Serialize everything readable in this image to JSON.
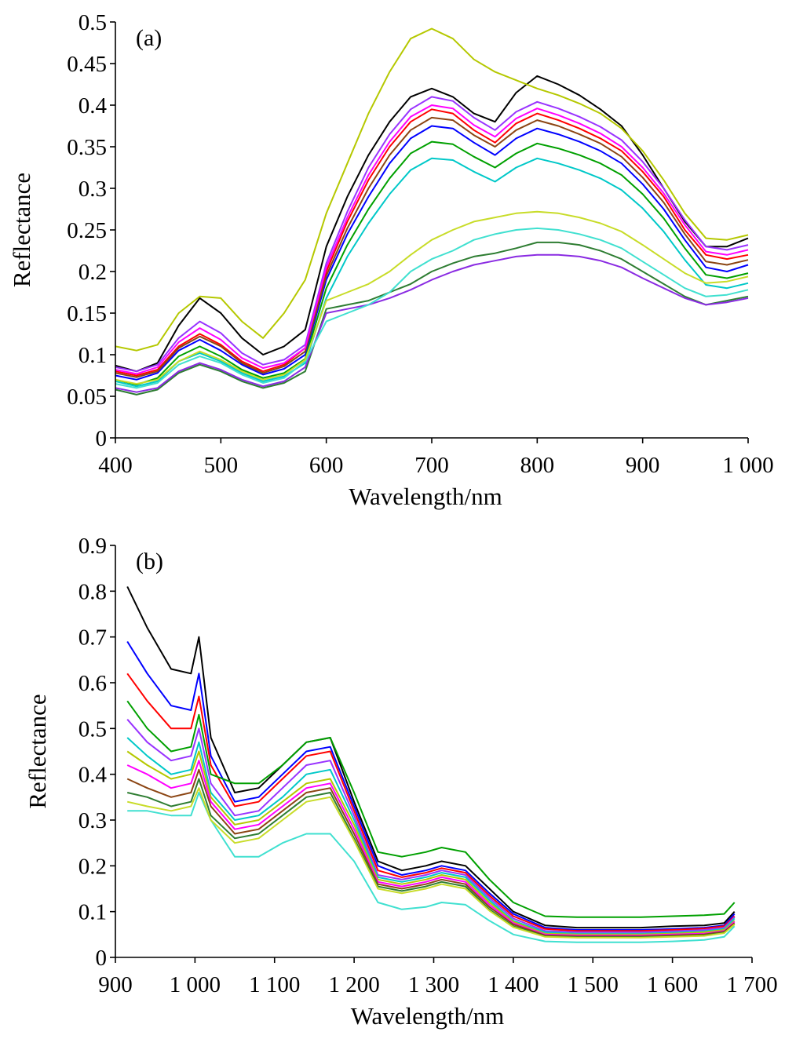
{
  "chart_data": [
    {
      "type": "line",
      "panel_label": "(a)",
      "xlabel": "Wavelength/nm",
      "ylabel": "Reflectance",
      "xlim": [
        400,
        1000
      ],
      "ylim": [
        0,
        0.5
      ],
      "x_ticks": [
        400,
        500,
        600,
        700,
        800,
        900,
        1000
      ],
      "x_tick_labels": [
        "400",
        "500",
        "600",
        "700",
        "800",
        "900",
        "1 000"
      ],
      "y_ticks": [
        0,
        0.05,
        0.1,
        0.15,
        0.2,
        0.25,
        0.3,
        0.35,
        0.4,
        0.45,
        0.5
      ],
      "y_tick_labels": [
        "0",
        "0.05",
        "0.1",
        "0.15",
        "0.2",
        "0.25",
        "0.3",
        "0.35",
        "0.4",
        "0.45",
        "0.5"
      ],
      "grid": false,
      "legend": "none",
      "x": [
        400,
        420,
        440,
        460,
        480,
        500,
        520,
        540,
        560,
        580,
        600,
        620,
        640,
        660,
        680,
        700,
        720,
        740,
        760,
        780,
        800,
        820,
        840,
        860,
        880,
        900,
        920,
        940,
        960,
        980,
        1000
      ],
      "series": [
        {
          "color": "#000000",
          "values": [
            0.087,
            0.08,
            0.09,
            0.135,
            0.168,
            0.15,
            0.12,
            0.1,
            0.11,
            0.13,
            0.23,
            0.29,
            0.34,
            0.38,
            0.41,
            0.42,
            0.41,
            0.39,
            0.38,
            0.415,
            0.435,
            0.425,
            0.412,
            0.395,
            0.375,
            0.34,
            0.3,
            0.26,
            0.23,
            0.23,
            0.24
          ]
        },
        {
          "color": "#ff0000",
          "values": [
            0.08,
            0.075,
            0.082,
            0.11,
            0.125,
            0.112,
            0.092,
            0.08,
            0.088,
            0.108,
            0.2,
            0.26,
            0.31,
            0.35,
            0.38,
            0.395,
            0.39,
            0.37,
            0.355,
            0.378,
            0.39,
            0.382,
            0.372,
            0.36,
            0.345,
            0.32,
            0.29,
            0.25,
            0.22,
            0.215,
            0.22
          ]
        },
        {
          "color": "#0000ff",
          "values": [
            0.075,
            0.07,
            0.078,
            0.105,
            0.118,
            0.105,
            0.088,
            0.076,
            0.083,
            0.1,
            0.19,
            0.245,
            0.29,
            0.33,
            0.36,
            0.375,
            0.372,
            0.355,
            0.34,
            0.36,
            0.372,
            0.365,
            0.356,
            0.345,
            0.33,
            0.305,
            0.275,
            0.238,
            0.205,
            0.2,
            0.208
          ]
        },
        {
          "color": "#00a000",
          "values": [
            0.07,
            0.064,
            0.072,
            0.098,
            0.11,
            0.098,
            0.082,
            0.072,
            0.078,
            0.095,
            0.18,
            0.232,
            0.275,
            0.312,
            0.342,
            0.356,
            0.353,
            0.338,
            0.325,
            0.342,
            0.354,
            0.348,
            0.34,
            0.33,
            0.316,
            0.293,
            0.264,
            0.228,
            0.196,
            0.192,
            0.198
          ]
        },
        {
          "color": "#9933ff",
          "values": [
            0.085,
            0.08,
            0.088,
            0.12,
            0.14,
            0.126,
            0.102,
            0.088,
            0.094,
            0.112,
            0.21,
            0.272,
            0.325,
            0.365,
            0.395,
            0.41,
            0.405,
            0.385,
            0.37,
            0.392,
            0.404,
            0.396,
            0.386,
            0.374,
            0.358,
            0.332,
            0.3,
            0.262,
            0.23,
            0.226,
            0.232
          ]
        },
        {
          "color": "#00c8c8",
          "values": [
            0.068,
            0.062,
            0.068,
            0.092,
            0.102,
            0.092,
            0.078,
            0.068,
            0.074,
            0.09,
            0.168,
            0.218,
            0.258,
            0.293,
            0.322,
            0.336,
            0.334,
            0.32,
            0.308,
            0.325,
            0.336,
            0.33,
            0.322,
            0.312,
            0.298,
            0.276,
            0.248,
            0.214,
            0.184,
            0.18,
            0.186
          ]
        },
        {
          "color": "#b5c800",
          "values": [
            0.11,
            0.105,
            0.112,
            0.15,
            0.17,
            0.168,
            0.14,
            0.12,
            0.15,
            0.19,
            0.27,
            0.33,
            0.39,
            0.44,
            0.48,
            0.492,
            0.48,
            0.455,
            0.44,
            0.43,
            0.42,
            0.412,
            0.402,
            0.39,
            0.372,
            0.345,
            0.31,
            0.27,
            0.24,
            0.238,
            0.244
          ]
        },
        {
          "color": "#8b4513",
          "values": [
            0.078,
            0.073,
            0.08,
            0.108,
            0.122,
            0.11,
            0.09,
            0.078,
            0.086,
            0.104,
            0.195,
            0.252,
            0.3,
            0.34,
            0.37,
            0.385,
            0.382,
            0.364,
            0.35,
            0.37,
            0.382,
            0.375,
            0.365,
            0.354,
            0.338,
            0.313,
            0.283,
            0.245,
            0.212,
            0.208,
            0.214
          ]
        },
        {
          "color": "#ff00ff",
          "values": [
            0.082,
            0.077,
            0.085,
            0.115,
            0.132,
            0.118,
            0.096,
            0.084,
            0.09,
            0.108,
            0.205,
            0.265,
            0.316,
            0.356,
            0.386,
            0.4,
            0.396,
            0.376,
            0.362,
            0.384,
            0.396,
            0.388,
            0.378,
            0.366,
            0.35,
            0.325,
            0.294,
            0.256,
            0.224,
            0.22,
            0.226
          ]
        },
        {
          "color": "#2e7d32",
          "values": [
            0.058,
            0.052,
            0.058,
            0.078,
            0.088,
            0.08,
            0.068,
            0.06,
            0.066,
            0.08,
            0.155,
            0.16,
            0.165,
            0.175,
            0.185,
            0.2,
            0.21,
            0.218,
            0.222,
            0.228,
            0.235,
            0.235,
            0.232,
            0.225,
            0.215,
            0.2,
            0.185,
            0.17,
            0.16,
            0.165,
            0.17
          ]
        },
        {
          "color": "#8a2be2",
          "values": [
            0.06,
            0.055,
            0.06,
            0.08,
            0.09,
            0.082,
            0.07,
            0.062,
            0.068,
            0.085,
            0.15,
            0.155,
            0.16,
            0.168,
            0.178,
            0.19,
            0.2,
            0.208,
            0.213,
            0.218,
            0.22,
            0.22,
            0.218,
            0.213,
            0.205,
            0.192,
            0.18,
            0.168,
            0.16,
            0.163,
            0.168
          ]
        },
        {
          "color": "#40e0d0",
          "values": [
            0.065,
            0.06,
            0.066,
            0.088,
            0.098,
            0.09,
            0.076,
            0.066,
            0.072,
            0.092,
            0.14,
            0.15,
            0.16,
            0.175,
            0.2,
            0.215,
            0.225,
            0.238,
            0.245,
            0.25,
            0.252,
            0.25,
            0.245,
            0.238,
            0.228,
            0.212,
            0.196,
            0.18,
            0.17,
            0.172,
            0.178
          ]
        },
        {
          "color": "#c8dc28",
          "values": [
            0.07,
            0.065,
            0.07,
            0.092,
            0.104,
            0.094,
            0.08,
            0.07,
            0.076,
            0.094,
            0.165,
            0.175,
            0.185,
            0.2,
            0.22,
            0.238,
            0.25,
            0.26,
            0.265,
            0.27,
            0.272,
            0.27,
            0.265,
            0.258,
            0.248,
            0.232,
            0.215,
            0.198,
            0.186,
            0.188,
            0.194
          ]
        }
      ]
    },
    {
      "type": "line",
      "panel_label": "(b)",
      "xlabel": "Wavelength/nm",
      "ylabel": "Reflectance",
      "xlim": [
        900,
        1700
      ],
      "ylim": [
        0,
        0.9
      ],
      "x_ticks": [
        900,
        1000,
        1100,
        1200,
        1300,
        1400,
        1500,
        1600,
        1700
      ],
      "x_tick_labels": [
        "900",
        "1 000",
        "1 100",
        "1 200",
        "1 300",
        "1 400",
        "1 500",
        "1 600",
        "1 700"
      ],
      "y_ticks": [
        0,
        0.1,
        0.2,
        0.3,
        0.4,
        0.5,
        0.6,
        0.7,
        0.8,
        0.9
      ],
      "y_tick_labels": [
        "0",
        "0.1",
        "0.2",
        "0.3",
        "0.4",
        "0.5",
        "0.6",
        "0.7",
        "0.8",
        "0.9"
      ],
      "grid": false,
      "legend": "none",
      "x": [
        915,
        940,
        970,
        995,
        1005,
        1020,
        1050,
        1080,
        1110,
        1140,
        1170,
        1200,
        1230,
        1260,
        1290,
        1310,
        1340,
        1370,
        1400,
        1440,
        1480,
        1520,
        1560,
        1600,
        1640,
        1665,
        1678
      ],
      "series": [
        {
          "color": "#000000",
          "values": [
            0.81,
            0.72,
            0.63,
            0.62,
            0.7,
            0.48,
            0.36,
            0.37,
            0.42,
            0.47,
            0.48,
            0.34,
            0.21,
            0.19,
            0.2,
            0.21,
            0.2,
            0.15,
            0.1,
            0.07,
            0.065,
            0.065,
            0.065,
            0.068,
            0.07,
            0.075,
            0.1
          ]
        },
        {
          "color": "#0000ff",
          "values": [
            0.69,
            0.62,
            0.55,
            0.54,
            0.62,
            0.44,
            0.34,
            0.35,
            0.4,
            0.45,
            0.46,
            0.33,
            0.2,
            0.18,
            0.19,
            0.2,
            0.19,
            0.14,
            0.095,
            0.065,
            0.06,
            0.06,
            0.06,
            0.062,
            0.065,
            0.07,
            0.095
          ]
        },
        {
          "color": "#ff0000",
          "values": [
            0.62,
            0.56,
            0.5,
            0.5,
            0.57,
            0.42,
            0.33,
            0.34,
            0.39,
            0.44,
            0.45,
            0.32,
            0.19,
            0.175,
            0.185,
            0.195,
            0.185,
            0.135,
            0.09,
            0.062,
            0.058,
            0.058,
            0.058,
            0.06,
            0.063,
            0.068,
            0.09
          ]
        },
        {
          "color": "#00a000",
          "values": [
            0.56,
            0.5,
            0.45,
            0.46,
            0.53,
            0.4,
            0.38,
            0.38,
            0.42,
            0.47,
            0.48,
            0.36,
            0.23,
            0.22,
            0.23,
            0.24,
            0.23,
            0.17,
            0.12,
            0.09,
            0.088,
            0.088,
            0.088,
            0.09,
            0.092,
            0.095,
            0.12
          ]
        },
        {
          "color": "#9933ff",
          "values": [
            0.52,
            0.47,
            0.43,
            0.44,
            0.5,
            0.38,
            0.31,
            0.32,
            0.37,
            0.42,
            0.43,
            0.31,
            0.18,
            0.17,
            0.18,
            0.19,
            0.18,
            0.13,
            0.085,
            0.058,
            0.055,
            0.055,
            0.055,
            0.057,
            0.06,
            0.065,
            0.088
          ]
        },
        {
          "color": "#00c8c8",
          "values": [
            0.48,
            0.44,
            0.4,
            0.41,
            0.47,
            0.36,
            0.3,
            0.31,
            0.35,
            0.4,
            0.41,
            0.3,
            0.175,
            0.165,
            0.175,
            0.185,
            0.175,
            0.125,
            0.08,
            0.055,
            0.052,
            0.052,
            0.052,
            0.054,
            0.057,
            0.062,
            0.085
          ]
        },
        {
          "color": "#b5c800",
          "values": [
            0.45,
            0.42,
            0.39,
            0.4,
            0.45,
            0.35,
            0.29,
            0.3,
            0.34,
            0.38,
            0.39,
            0.29,
            0.17,
            0.16,
            0.17,
            0.18,
            0.17,
            0.12,
            0.078,
            0.052,
            0.05,
            0.05,
            0.05,
            0.052,
            0.055,
            0.06,
            0.08
          ]
        },
        {
          "color": "#ff00ff",
          "values": [
            0.42,
            0.4,
            0.37,
            0.38,
            0.43,
            0.34,
            0.28,
            0.29,
            0.33,
            0.37,
            0.38,
            0.28,
            0.165,
            0.155,
            0.165,
            0.175,
            0.165,
            0.115,
            0.075,
            0.05,
            0.048,
            0.048,
            0.048,
            0.05,
            0.052,
            0.058,
            0.078
          ]
        },
        {
          "color": "#8b4513",
          "values": [
            0.39,
            0.37,
            0.35,
            0.36,
            0.41,
            0.33,
            0.27,
            0.28,
            0.32,
            0.36,
            0.37,
            0.27,
            0.16,
            0.15,
            0.16,
            0.17,
            0.16,
            0.11,
            0.072,
            0.048,
            0.046,
            0.046,
            0.046,
            0.048,
            0.05,
            0.056,
            0.075
          ]
        },
        {
          "color": "#2e7d32",
          "values": [
            0.36,
            0.35,
            0.33,
            0.34,
            0.39,
            0.31,
            0.26,
            0.27,
            0.31,
            0.35,
            0.36,
            0.26,
            0.155,
            0.145,
            0.155,
            0.165,
            0.155,
            0.105,
            0.068,
            0.046,
            0.044,
            0.044,
            0.044,
            0.046,
            0.048,
            0.054,
            0.072
          ]
        },
        {
          "color": "#40e0d0",
          "values": [
            0.32,
            0.32,
            0.31,
            0.31,
            0.36,
            0.3,
            0.22,
            0.22,
            0.25,
            0.27,
            0.27,
            0.21,
            0.12,
            0.105,
            0.11,
            0.12,
            0.115,
            0.08,
            0.05,
            0.035,
            0.033,
            0.033,
            0.033,
            0.035,
            0.038,
            0.045,
            0.068
          ]
        },
        {
          "color": "#c8dc28",
          "values": [
            0.34,
            0.33,
            0.32,
            0.33,
            0.37,
            0.3,
            0.25,
            0.26,
            0.3,
            0.34,
            0.35,
            0.255,
            0.15,
            0.14,
            0.15,
            0.16,
            0.15,
            0.102,
            0.066,
            0.045,
            0.043,
            0.043,
            0.043,
            0.045,
            0.047,
            0.053,
            0.072
          ]
        }
      ]
    }
  ]
}
